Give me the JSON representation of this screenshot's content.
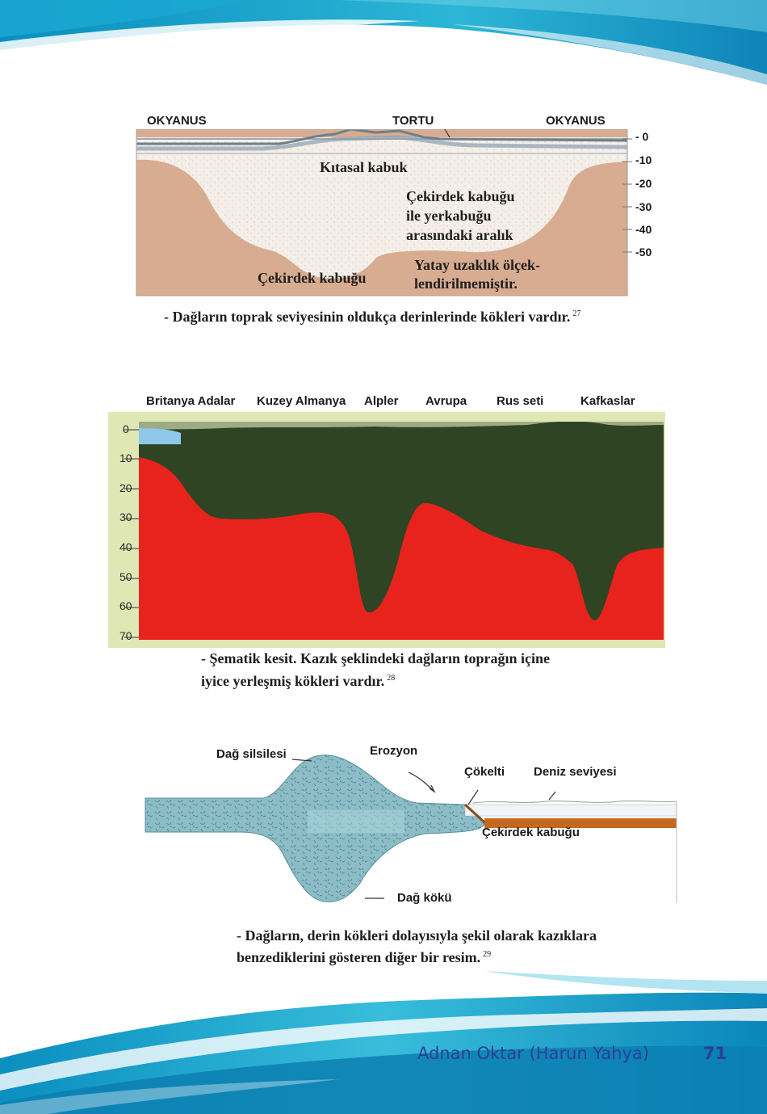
{
  "figure1": {
    "label_ocean_left": "OKYANUS",
    "label_sediment": "TORTU",
    "label_ocean_right": "OKYANUS",
    "label_continental_crust": "Kıtasal kabuk",
    "label_gap": [
      "Çekirdek kabuğu",
      "ile yerkabuğu",
      "arasındaki aralık"
    ],
    "label_scale_note": [
      "Yatay uzaklık ölçek-",
      "lendirilmemiştir."
    ],
    "label_core_crust": "Çekirdek kabuğu",
    "depth_ticks": [
      "- 0",
      "-10",
      "-20",
      "-30",
      "-40",
      "-50"
    ],
    "caption": "- Dağların toprak seviyesinin oldukça derinlerinde kökleri vardır.",
    "footnote": "27"
  },
  "figure2": {
    "regions": [
      "Britanya Adalar",
      "Kuzey Almanya",
      "Alpler",
      "Avrupa",
      "Rus seti",
      "Kafkaslar"
    ],
    "depth_ticks": [
      "0",
      "10",
      "20",
      "30",
      "40",
      "50",
      "60",
      "70"
    ],
    "caption": [
      "- Şematik kesit. Kazık şeklindeki dağların toprağın içine",
      "iyice yerleşmiş kökleri vardır."
    ],
    "footnote": "28",
    "colors": {
      "crust": "#2f4423",
      "mantle": "#e8231e",
      "sea": "#8ec8ea",
      "frame": "#dfe8b4"
    }
  },
  "figure3": {
    "label_range": "Dağ silsilesi",
    "label_erosion": "Erozyon",
    "label_sediment": "Çökelti",
    "label_sea_level": "Deniz seviyesi",
    "label_core_crust": "Çekirdek kabuğu",
    "label_root": "Dağ kökü",
    "caption": [
      "- Dağların, derin kökleri dolayısıyla şekil olarak kazıklara",
      "benzediklerini gösteren diğer bir resim."
    ],
    "footnote": "29"
  },
  "footer": {
    "author": "Adnan Oktar (Harun Yahya)",
    "page_number": "71",
    "colors": {
      "author": "#2b3f9a",
      "wave": "#1fa7c9"
    }
  }
}
